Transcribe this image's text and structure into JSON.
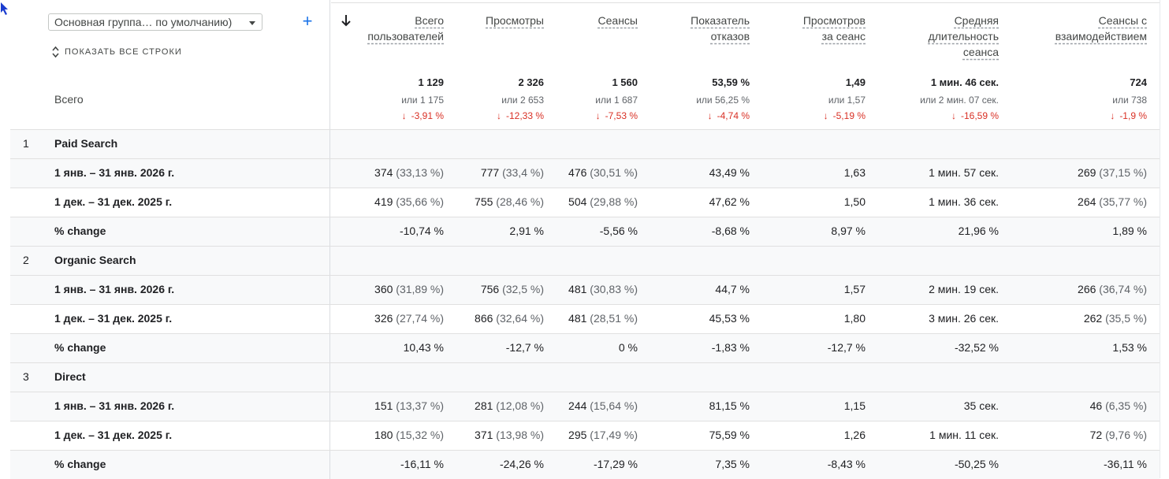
{
  "toolbar": {
    "dimension_select": "Основная группа… по умолчанию)",
    "show_all_rows": "ПОКАЗАТЬ ВСЕ СТРОКИ",
    "total_label": "Всего"
  },
  "columns": [
    {
      "header": [
        "Всего",
        "пользователей"
      ],
      "total": "1 129",
      "compare": "или 1 175",
      "change": "-3,91 %"
    },
    {
      "header": [
        "Просмотры"
      ],
      "total": "2 326",
      "compare": "или 2 653",
      "change": "-12,33 %"
    },
    {
      "header": [
        "Сеансы"
      ],
      "total": "1 560",
      "compare": "или 1 687",
      "change": "-7,53 %"
    },
    {
      "header": [
        "Показатель",
        "отказов"
      ],
      "total": "53,59 %",
      "compare": "или 56,25 %",
      "change": "-4,74 %"
    },
    {
      "header": [
        "Просмотров",
        "за сеанс"
      ],
      "total": "1,49",
      "compare": "или 1,57",
      "change": "-5,19 %"
    },
    {
      "header": [
        "Средняя",
        "длительность",
        "сеанса"
      ],
      "total": "1 мин. 46 сек.",
      "compare": "или 2 мин. 07 сек.",
      "change": "-16,59 %"
    },
    {
      "header": [
        "Сеансы с",
        "взаимодействием"
      ],
      "total": "724",
      "compare": "или 738",
      "change": "-1,9 %"
    }
  ],
  "groups": [
    {
      "index": "1",
      "name": "Paid Search",
      "rows": [
        {
          "label": "1 янв. – 31 янв. 2026 г.",
          "cells": [
            [
              "374",
              "(33,13 %)"
            ],
            [
              "777",
              "(33,4 %)"
            ],
            [
              "476",
              "(30,51 %)"
            ],
            [
              "43,49 %",
              ""
            ],
            [
              "1,63",
              ""
            ],
            [
              "1 мин. 57 сек.",
              ""
            ],
            [
              "269",
              "(37,15 %)"
            ]
          ]
        },
        {
          "label": "1 дек. – 31 дек. 2025 г.",
          "cells": [
            [
              "419",
              "(35,66 %)"
            ],
            [
              "755",
              "(28,46 %)"
            ],
            [
              "504",
              "(29,88 %)"
            ],
            [
              "47,62 %",
              ""
            ],
            [
              "1,50",
              ""
            ],
            [
              "1 мин. 36 сек.",
              ""
            ],
            [
              "264",
              "(35,77 %)"
            ]
          ]
        },
        {
          "label": "% change",
          "cells": [
            [
              "-10,74 %",
              ""
            ],
            [
              "2,91 %",
              ""
            ],
            [
              "-5,56 %",
              ""
            ],
            [
              "-8,68 %",
              ""
            ],
            [
              "8,97 %",
              ""
            ],
            [
              "21,96 %",
              ""
            ],
            [
              "1,89 %",
              ""
            ]
          ]
        }
      ]
    },
    {
      "index": "2",
      "name": "Organic Search",
      "rows": [
        {
          "label": "1 янв. – 31 янв. 2026 г.",
          "cells": [
            [
              "360",
              "(31,89 %)"
            ],
            [
              "756",
              "(32,5 %)"
            ],
            [
              "481",
              "(30,83 %)"
            ],
            [
              "44,7 %",
              ""
            ],
            [
              "1,57",
              ""
            ],
            [
              "2 мин. 19 сек.",
              ""
            ],
            [
              "266",
              "(36,74 %)"
            ]
          ]
        },
        {
          "label": "1 дек. – 31 дек. 2025 г.",
          "cells": [
            [
              "326",
              "(27,74 %)"
            ],
            [
              "866",
              "(32,64 %)"
            ],
            [
              "481",
              "(28,51 %)"
            ],
            [
              "45,53 %",
              ""
            ],
            [
              "1,80",
              ""
            ],
            [
              "3 мин. 26 сек.",
              ""
            ],
            [
              "262",
              "(35,5 %)"
            ]
          ]
        },
        {
          "label": "% change",
          "cells": [
            [
              "10,43 %",
              ""
            ],
            [
              "-12,7 %",
              ""
            ],
            [
              "0 %",
              ""
            ],
            [
              "-1,83 %",
              ""
            ],
            [
              "-12,7 %",
              ""
            ],
            [
              "-32,52 %",
              ""
            ],
            [
              "1,53 %",
              ""
            ]
          ]
        }
      ]
    },
    {
      "index": "3",
      "name": "Direct",
      "rows": [
        {
          "label": "1 янв. – 31 янв. 2026 г.",
          "cells": [
            [
              "151",
              "(13,37 %)"
            ],
            [
              "281",
              "(12,08 %)"
            ],
            [
              "244",
              "(15,64 %)"
            ],
            [
              "81,15 %",
              ""
            ],
            [
              "1,15",
              ""
            ],
            [
              "35 сек.",
              ""
            ],
            [
              "46",
              "(6,35 %)"
            ]
          ]
        },
        {
          "label": "1 дек. – 31 дек. 2025 г.",
          "cells": [
            [
              "180",
              "(15,32 %)"
            ],
            [
              "371",
              "(13,98 %)"
            ],
            [
              "295",
              "(17,49 %)"
            ],
            [
              "75,59 %",
              ""
            ],
            [
              "1,26",
              ""
            ],
            [
              "1 мин. 11 сек.",
              ""
            ],
            [
              "72",
              "(9,76 %)"
            ]
          ]
        },
        {
          "label": "% change",
          "cells": [
            [
              "-16,11 %",
              ""
            ],
            [
              "-24,26 %",
              ""
            ],
            [
              "-17,29 %",
              ""
            ],
            [
              "7,35 %",
              ""
            ],
            [
              "-8,43 %",
              ""
            ],
            [
              "-50,25 %",
              ""
            ],
            [
              "-36,11 %",
              ""
            ]
          ]
        }
      ]
    }
  ]
}
